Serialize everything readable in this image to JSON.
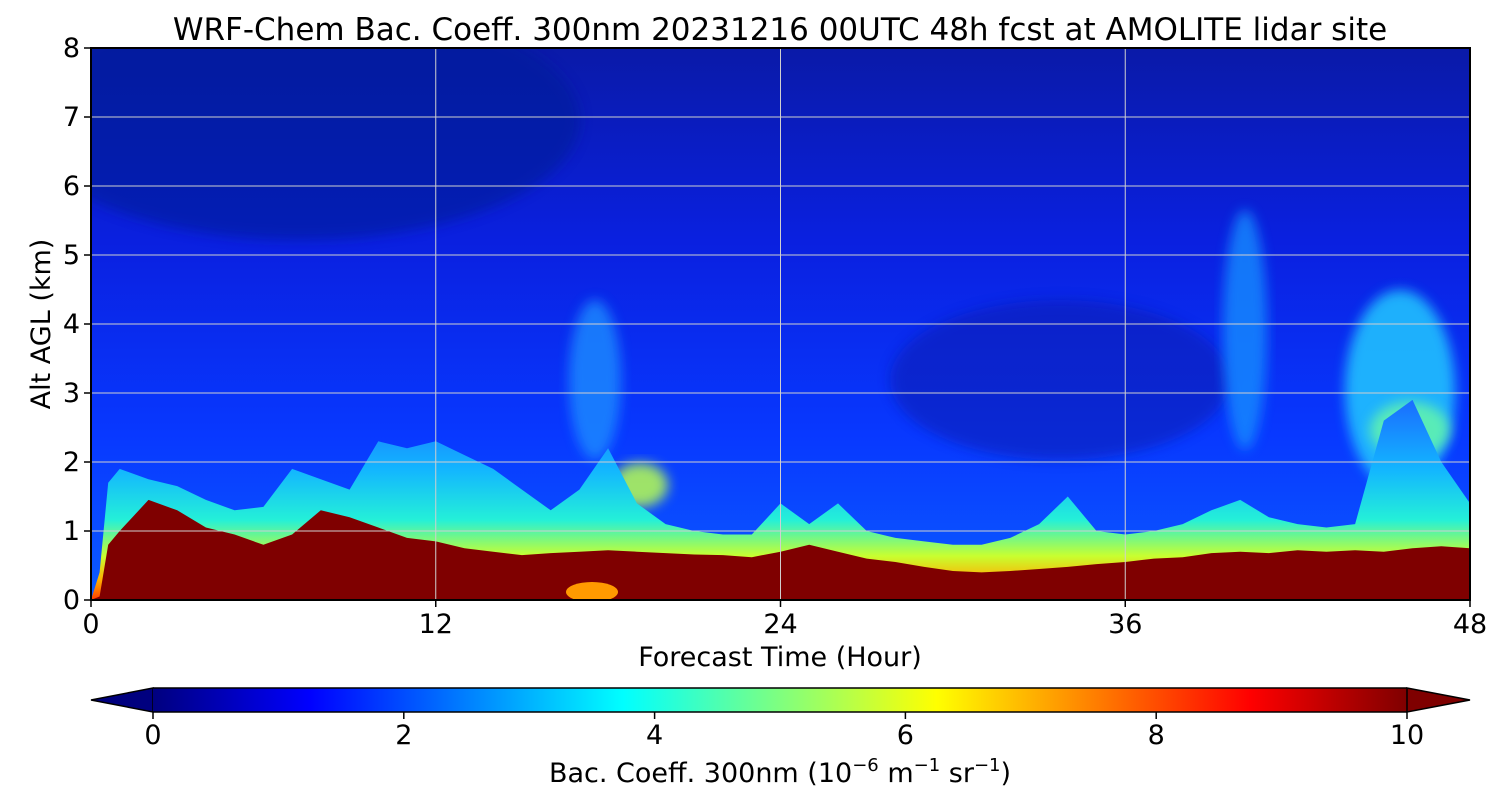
{
  "chart_data": {
    "type": "heatmap",
    "title": "WRF-Chem Bac. Coeff. 300nm  20231216 00UTC 48h fcst at AMOLITE lidar site",
    "xlabel": "Forecast Time (Hour)",
    "ylabel": "Alt AGL (km)",
    "xlim": [
      0,
      48
    ],
    "ylim": [
      0,
      8
    ],
    "xticks": [
      "0",
      "12",
      "24",
      "36",
      "48"
    ],
    "yticks": [
      "0",
      "1",
      "2",
      "3",
      "4",
      "5",
      "6",
      "7",
      "8"
    ],
    "grid": true,
    "colormap": "jet",
    "colorbar": {
      "orientation": "horizontal",
      "range": [
        0,
        10
      ],
      "extend": "both",
      "ticks": [
        "0",
        "2",
        "4",
        "6",
        "8",
        "10"
      ],
      "label_main": "Bac. Coeff. 300nm  (10",
      "label_exp1": "−6",
      "label_mid": " m",
      "label_exp2": "−1",
      "label_mid2": " sr",
      "label_exp3": "−1",
      "label_end": ")"
    },
    "profile_hours": [
      0,
      0.3,
      0.6,
      1,
      2,
      3,
      4,
      5,
      6,
      7,
      8,
      9,
      10,
      11,
      12,
      13,
      14,
      15,
      16,
      17,
      18,
      19,
      20,
      21,
      22,
      23,
      24,
      25,
      26,
      27,
      28,
      29,
      30,
      31,
      32,
      33,
      34,
      35,
      36,
      37,
      38,
      39,
      40,
      41,
      42,
      43,
      44,
      45,
      46,
      47,
      48
    ],
    "surface_layer_top_km": [
      0,
      0.05,
      0.8,
      1.0,
      1.45,
      1.3,
      1.05,
      0.95,
      0.8,
      0.95,
      1.3,
      1.2,
      1.05,
      0.9,
      0.85,
      0.75,
      0.7,
      0.65,
      0.68,
      0.7,
      0.72,
      0.7,
      0.68,
      0.66,
      0.65,
      0.62,
      0.7,
      0.8,
      0.7,
      0.6,
      0.55,
      0.48,
      0.42,
      0.4,
      0.42,
      0.45,
      0.48,
      0.52,
      0.55,
      0.6,
      0.62,
      0.68,
      0.7,
      0.68,
      0.72,
      0.7,
      0.72,
      0.7,
      0.75,
      0.78,
      0.75
    ],
    "aerosol_layer_top_km": [
      0,
      0.4,
      1.7,
      1.9,
      1.75,
      1.65,
      1.45,
      1.3,
      1.35,
      1.9,
      1.75,
      1.6,
      2.3,
      2.2,
      2.3,
      2.1,
      1.9,
      1.6,
      1.3,
      1.6,
      2.2,
      1.4,
      1.1,
      1.0,
      0.95,
      0.95,
      1.4,
      1.1,
      1.4,
      1.0,
      0.9,
      0.85,
      0.8,
      0.8,
      0.9,
      1.1,
      1.5,
      1.0,
      0.95,
      1.0,
      1.1,
      1.3,
      1.45,
      1.2,
      1.1,
      1.05,
      1.1,
      2.6,
      2.9,
      2.0,
      1.4
    ]
  }
}
